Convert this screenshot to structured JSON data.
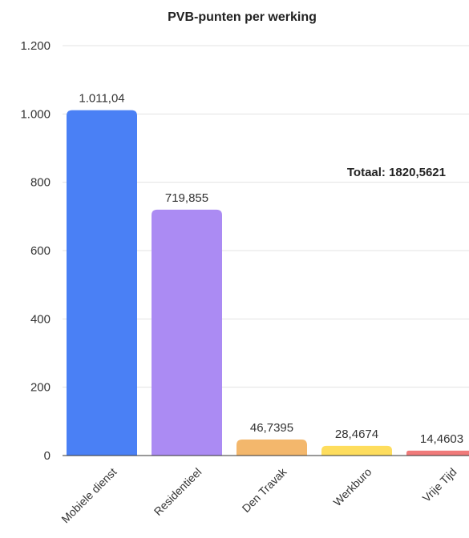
{
  "chart_data": {
    "type": "bar",
    "title": "PVB-punten per werking",
    "xlabel": "",
    "ylabel": "",
    "ylim": [
      0,
      1200
    ],
    "y_ticks": [
      0,
      200,
      400,
      600,
      800,
      1000,
      1200
    ],
    "y_tick_labels": [
      "0",
      "200",
      "400",
      "600",
      "800",
      "1.000",
      "1.200"
    ],
    "grid": true,
    "categories": [
      "Mobiele dienst",
      "Residentieel",
      "Den Travak",
      "Werkburo",
      "Vrije Tijd"
    ],
    "values": [
      1011.04,
      719.855,
      46.7395,
      28.4674,
      14.4603
    ],
    "data_labels": [
      "1.011,04",
      "719,855",
      "46,7395",
      "28,4674",
      "14,4603"
    ],
    "colors": [
      "#4a80f5",
      "#ab8bf3",
      "#f3b76c",
      "#fedd5d",
      "#f07a7a"
    ],
    "annotation": "Totaal: 1820,5621"
  }
}
